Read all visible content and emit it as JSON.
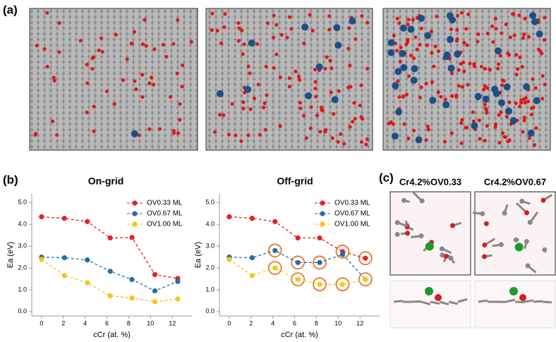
{
  "panel_labels": [
    "(a)",
    "(b)",
    "(c)"
  ],
  "structure_labels": [
    "Cr4.2%OV0.33",
    "Cr4.2%OV0.67"
  ],
  "chart_data": [
    {
      "type": "line",
      "title": "On-grid",
      "x_label": "cCr (at. %)",
      "y_label": "Ea (eV)",
      "x": [
        0,
        2.1,
        4.2,
        6.3,
        8.3,
        10.4,
        12.5
      ],
      "series": [
        {
          "name": "OV0.33 ML",
          "color": "#e8201f",
          "values": [
            4.35,
            4.28,
            4.13,
            3.38,
            3.4,
            1.7,
            1.52
          ]
        },
        {
          "name": "OV0.67 ML",
          "color": "#1f6fa8",
          "values": [
            2.5,
            2.47,
            2.37,
            1.85,
            1.47,
            0.95,
            1.38
          ]
        },
        {
          "name": "OV1.00 ML",
          "color": "#f5c518",
          "values": [
            2.4,
            1.65,
            1.32,
            0.72,
            0.62,
            0.45,
            0.58
          ]
        }
      ],
      "xlim": [
        -0.9,
        13.8
      ],
      "ylim": [
        -0.2,
        5.4
      ],
      "xticks": [
        0,
        2,
        4,
        6,
        8,
        10,
        12
      ],
      "yticks": [
        {
          "value": 0,
          "label": "0.0"
        },
        {
          "value": 1,
          "label": "1.0"
        },
        {
          "value": 2,
          "label": "2.0"
        },
        {
          "value": 3,
          "label": "3.0"
        },
        {
          "value": 4,
          "label": "4.0"
        },
        {
          "value": 5,
          "label": "5.0"
        }
      ],
      "legend": "upper right"
    },
    {
      "type": "line",
      "title": "Off-grid",
      "x_label": "cCr (at. %)",
      "y_label": "Ea (eV)",
      "x": [
        0,
        2.1,
        4.2,
        6.3,
        8.3,
        10.4,
        12.5
      ],
      "series": [
        {
          "name": "OV0.33 ML",
          "color": "#e8201f",
          "values": [
            4.35,
            4.28,
            4.13,
            3.38,
            3.38,
            2.75,
            2.45
          ]
        },
        {
          "name": "OV0.67 ML",
          "color": "#1f6fa8",
          "values": [
            2.5,
            2.47,
            2.8,
            2.25,
            2.25,
            2.62,
            1.48
          ]
        },
        {
          "name": "OV1.00 ML",
          "color": "#f5c518",
          "values": [
            2.4,
            1.65,
            2.0,
            1.48,
            1.25,
            1.25,
            1.48
          ]
        }
      ],
      "xlim": [
        -0.9,
        13.8
      ],
      "ylim": [
        -0.2,
        5.4
      ],
      "xticks": [
        0,
        2,
        4,
        6,
        8,
        10,
        12
      ],
      "yticks": [
        {
          "value": 0,
          "label": "0.0"
        },
        {
          "value": 1,
          "label": "1.0"
        },
        {
          "value": 2,
          "label": "2.0"
        },
        {
          "value": 3,
          "label": "3.0"
        },
        {
          "value": 4,
          "label": "4.0"
        },
        {
          "value": 5,
          "label": "5.0"
        }
      ],
      "legend": "upper right"
    }
  ]
}
